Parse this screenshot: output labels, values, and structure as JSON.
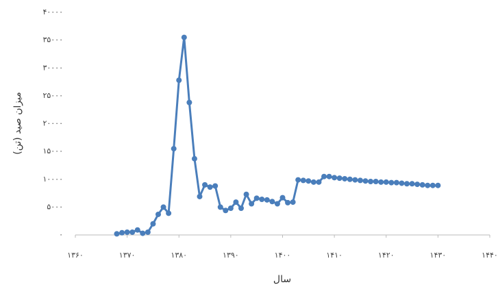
{
  "chart_data": {
    "type": "line",
    "x_label": "سال",
    "y_label": "میزان صید (تن)",
    "x": [
      1368,
      1369,
      1370,
      1371,
      1372,
      1373,
      1374,
      1375,
      1376,
      1377,
      1378,
      1379,
      1380,
      1381,
      1382,
      1383,
      1384,
      1385,
      1386,
      1387,
      1388,
      1389,
      1390,
      1391,
      1392,
      1393,
      1394,
      1395,
      1396,
      1397,
      1398,
      1399,
      1400,
      1401,
      1402,
      1403,
      1404,
      1405,
      1406,
      1407,
      1408,
      1409,
      1410,
      1411,
      1412,
      1413,
      1414,
      1415,
      1416,
      1417,
      1418,
      1419,
      1420,
      1421,
      1422,
      1423,
      1424,
      1425,
      1426,
      1427,
      1428,
      1429,
      1430
    ],
    "series": [
      {
        "color": "#4a7ebb",
        "values": [
          200,
          400,
          500,
          500,
          900,
          300,
          500,
          2000,
          3700,
          5000,
          3900,
          15500,
          27800,
          35500,
          23800,
          13700,
          6900,
          9000,
          8600,
          8800,
          5000,
          4400,
          4800,
          5900,
          4800,
          7300,
          5600,
          6600,
          6400,
          6300,
          6000,
          5600,
          6700,
          5800,
          5900,
          9900,
          9800,
          9700,
          9500,
          9500,
          10500,
          10500,
          10300,
          10200,
          10100,
          10000,
          9900,
          9800,
          9700,
          9600,
          9600,
          9500,
          9500,
          9400,
          9400,
          9300,
          9200,
          9200,
          9100,
          9000,
          8900,
          8900,
          8900
        ]
      }
    ],
    "xlim": [
      1360,
      1440
    ],
    "xticks": [
      {
        "value": 1360,
        "label": "۱۳۶۰"
      },
      {
        "value": 1370,
        "label": "۱۳۷۰"
      },
      {
        "value": 1380,
        "label": "۱۳۸۰"
      },
      {
        "value": 1390,
        "label": "۱۳۹۰"
      },
      {
        "value": 1400,
        "label": "۱۴۰۰"
      },
      {
        "value": 1410,
        "label": "۱۴۱۰"
      },
      {
        "value": 1420,
        "label": "۱۴۲۰"
      },
      {
        "value": 1430,
        "label": "۱۴۳۰"
      },
      {
        "value": 1440,
        "label": "۱۴۴۰"
      }
    ],
    "ylim": [
      0,
      40000
    ],
    "yticks": [
      {
        "value": 0,
        "label": "۰"
      },
      {
        "value": 5000,
        "label": "۵۰۰۰"
      },
      {
        "value": 10000,
        "label": "۱۰۰۰۰"
      },
      {
        "value": 15000,
        "label": "۱۵۰۰۰"
      },
      {
        "value": 20000,
        "label": "۲۰۰۰۰"
      },
      {
        "value": 25000,
        "label": "۲۵۰۰۰"
      },
      {
        "value": 30000,
        "label": "۳۰۰۰۰"
      },
      {
        "value": 35000,
        "label": "۳۵۰۰۰"
      },
      {
        "value": 40000,
        "label": "۴۰۰۰۰"
      }
    ]
  }
}
